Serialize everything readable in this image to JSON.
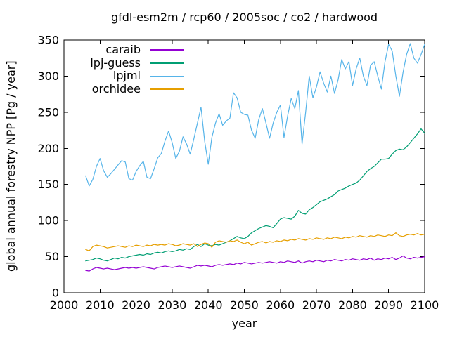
{
  "chart_data": {
    "type": "line",
    "title": "gfdl-esm2m / rcp60 / 2005soc / co2 / hardwood",
    "xlabel": "year",
    "ylabel": "global annual forestry NPP [Pg / year]",
    "xlim": [
      2000,
      2100
    ],
    "ylim": [
      0,
      350
    ],
    "xticks": [
      2000,
      2010,
      2020,
      2030,
      2040,
      2050,
      2060,
      2070,
      2080,
      2090,
      2100
    ],
    "yticks": [
      0,
      50,
      100,
      150,
      200,
      250,
      300,
      350
    ],
    "grid": false,
    "legend_position": "top-left-inside",
    "x_start": 2006,
    "x_step": 1,
    "axis_color": "#000000",
    "series": [
      {
        "name": "caraib",
        "color": "#9400D3",
        "values": [
          31,
          30,
          33,
          35,
          34,
          33,
          34,
          33,
          32,
          33,
          34,
          35,
          34,
          35,
          34,
          35,
          36,
          35,
          34,
          33,
          35,
          36,
          37,
          36,
          35,
          36,
          37,
          36,
          35,
          34,
          36,
          38,
          37,
          38,
          37,
          36,
          38,
          39,
          38,
          39,
          40,
          39,
          41,
          40,
          42,
          41,
          40,
          41,
          42,
          41,
          42,
          43,
          42,
          41,
          43,
          42,
          44,
          43,
          42,
          44,
          41,
          43,
          44,
          43,
          45,
          44,
          43,
          45,
          44,
          46,
          45,
          44,
          46,
          45,
          47,
          46,
          45,
          47,
          46,
          48,
          45,
          47,
          46,
          48,
          47,
          49,
          46,
          48,
          51,
          48,
          47,
          49,
          48,
          49,
          50
        ]
      },
      {
        "name": "lpj-guess",
        "color": "#009E73",
        "values": [
          44,
          45,
          46,
          48,
          47,
          45,
          44,
          46,
          48,
          47,
          49,
          48,
          50,
          51,
          52,
          53,
          52,
          54,
          53,
          55,
          56,
          55,
          57,
          58,
          57,
          58,
          60,
          59,
          61,
          60,
          64,
          67,
          64,
          68,
          66,
          65,
          67,
          66,
          68,
          70,
          72,
          75,
          78,
          76,
          75,
          78,
          83,
          86,
          89,
          91,
          93,
          92,
          90,
          96,
          102,
          104,
          103,
          102,
          106,
          114,
          110,
          109,
          115,
          118,
          122,
          126,
          128,
          130,
          133,
          136,
          141,
          143,
          145,
          148,
          150,
          152,
          156,
          162,
          168,
          172,
          175,
          180,
          185,
          185,
          186,
          192,
          197,
          199,
          198,
          202,
          208,
          214,
          220,
          227,
          221
        ]
      },
      {
        "name": "lpjml",
        "color": "#56B4E9",
        "values": [
          162,
          148,
          157,
          175,
          186,
          169,
          160,
          165,
          171,
          177,
          183,
          181,
          158,
          156,
          168,
          176,
          182,
          160,
          158,
          172,
          187,
          193,
          210,
          224,
          208,
          186,
          196,
          216,
          206,
          192,
          213,
          235,
          257,
          210,
          178,
          215,
          235,
          248,
          232,
          238,
          242,
          277,
          270,
          250,
          247,
          246,
          225,
          214,
          240,
          255,
          235,
          214,
          235,
          250,
          260,
          215,
          245,
          269,
          255,
          280,
          206,
          250,
          300,
          270,
          285,
          306,
          290,
          278,
          300,
          276,
          295,
          323,
          310,
          320,
          287,
          310,
          325,
          300,
          287,
          315,
          320,
          300,
          282,
          320,
          344,
          335,
          300,
          272,
          305,
          330,
          345,
          325,
          318,
          330,
          344
        ]
      },
      {
        "name": "orchidee",
        "color": "#E69F00",
        "values": [
          60,
          58,
          64,
          66,
          65,
          64,
          62,
          63,
          64,
          65,
          64,
          63,
          65,
          64,
          66,
          65,
          64,
          66,
          65,
          67,
          66,
          67,
          66,
          68,
          67,
          65,
          66,
          68,
          67,
          66,
          68,
          64,
          67,
          69,
          68,
          63,
          70,
          72,
          71,
          70,
          72,
          71,
          73,
          70,
          68,
          70,
          66,
          68,
          70,
          71,
          69,
          71,
          70,
          72,
          71,
          73,
          72,
          74,
          73,
          75,
          74,
          73,
          75,
          74,
          76,
          75,
          74,
          76,
          75,
          77,
          76,
          75,
          77,
          76,
          78,
          77,
          79,
          78,
          77,
          79,
          78,
          80,
          79,
          78,
          80,
          79,
          83,
          79,
          78,
          80,
          81,
          80,
          82,
          80,
          81
        ]
      }
    ]
  }
}
